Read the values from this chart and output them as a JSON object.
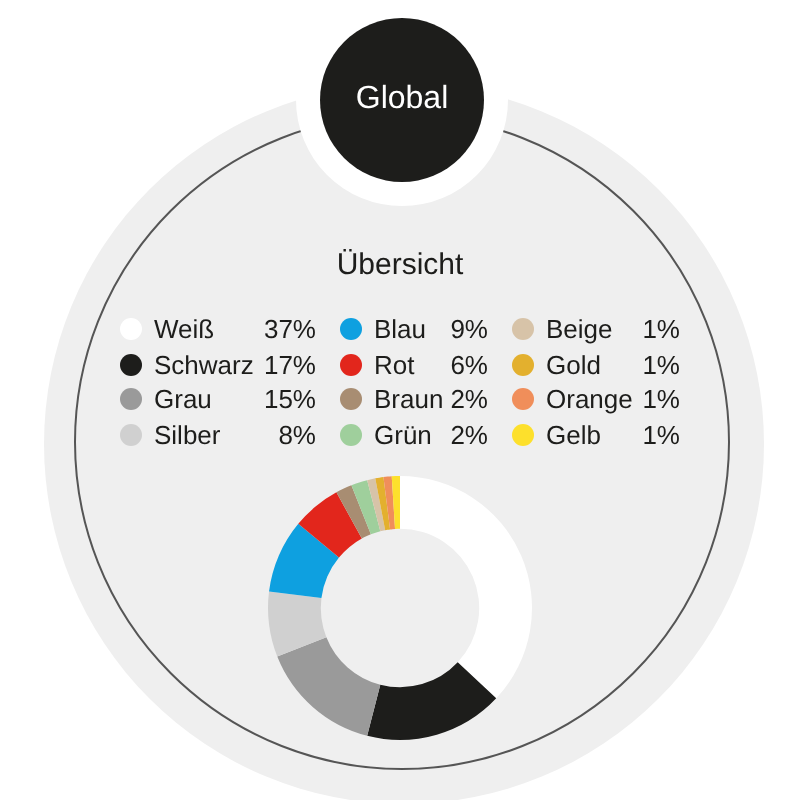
{
  "chart_data": {
    "type": "donut",
    "title": "Global",
    "subtitle": "Übersicht",
    "categories": [
      "Weiß",
      "Schwarz",
      "Grau",
      "Silber",
      "Blau",
      "Rot",
      "Braun",
      "Grün",
      "Beige",
      "Gold",
      "Orange",
      "Gelb"
    ],
    "values": [
      37,
      17,
      15,
      8,
      9,
      6,
      2,
      2,
      1,
      1,
      1,
      1
    ],
    "colors": [
      "#ffffff",
      "#1d1d1b",
      "#9a9a9a",
      "#d0d0d0",
      "#0ea0e0",
      "#e2261c",
      "#a88d72",
      "#9fcf9c",
      "#d7c3a8",
      "#e3b02e",
      "#f08e5a",
      "#fde02c"
    ],
    "value_labels": [
      "37%",
      "17%",
      "15%",
      "8%",
      "9%",
      "6%",
      "2%",
      "2%",
      "1%",
      "1%",
      "1%",
      "1%"
    ],
    "legend": "top"
  }
}
